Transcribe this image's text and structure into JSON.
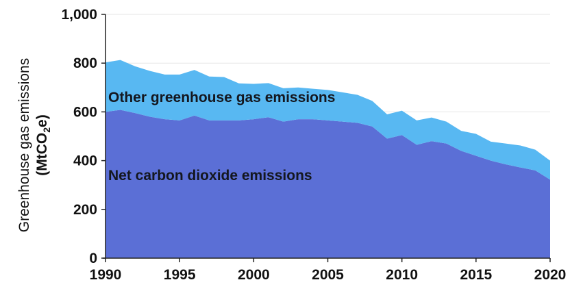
{
  "chart_data": {
    "type": "area",
    "stacked": true,
    "ylabel": "Greenhouse gas emissions",
    "ylabel_unit_parts": [
      "(MtCO",
      "2",
      "e)"
    ],
    "xlim": [
      1990,
      2020
    ],
    "ylim": [
      0,
      1000
    ],
    "y_ticks": [
      0,
      200,
      400,
      600,
      800,
      1000
    ],
    "y_tick_labels": [
      "0",
      "200",
      "400",
      "600",
      "800",
      "1,000"
    ],
    "x_ticks": [
      1990,
      1995,
      2000,
      2005,
      2010,
      2015,
      2020
    ],
    "x_tick_labels": [
      "1990",
      "1995",
      "2000",
      "2005",
      "2010",
      "2015",
      "2020"
    ],
    "grid": true,
    "x": [
      1990,
      1991,
      1992,
      1993,
      1994,
      1995,
      1996,
      1997,
      1998,
      1999,
      2000,
      2001,
      2002,
      2003,
      2004,
      2005,
      2006,
      2007,
      2008,
      2009,
      2010,
      2011,
      2012,
      2013,
      2014,
      2015,
      2016,
      2017,
      2018,
      2019,
      2020
    ],
    "series": [
      {
        "name": "Net carbon dioxide emissions",
        "color": "#5b6fd6",
        "values": [
          600,
          608,
          595,
          580,
          570,
          565,
          585,
          565,
          565,
          565,
          570,
          578,
          560,
          570,
          570,
          565,
          560,
          555,
          540,
          490,
          505,
          465,
          480,
          470,
          440,
          420,
          400,
          385,
          372,
          360,
          322
        ]
      },
      {
        "name": "Other greenhouse gas emissions",
        "color": "#58b8f2",
        "values": [
          203,
          205,
          192,
          188,
          183,
          188,
          187,
          180,
          178,
          152,
          145,
          140,
          137,
          130,
          125,
          125,
          120,
          115,
          105,
          100,
          100,
          100,
          97,
          90,
          82,
          90,
          78,
          85,
          90,
          85,
          78
        ]
      }
    ],
    "totals": [
      803,
      813,
      787,
      768,
      753,
      753,
      772,
      745,
      743,
      717,
      715,
      718,
      697,
      700,
      695,
      690,
      680,
      670,
      645,
      590,
      605,
      565,
      577,
      560,
      522,
      510,
      478,
      470,
      462,
      445,
      400
    ],
    "annotations": [
      {
        "text": "Other greenhouse gas emissions"
      },
      {
        "text": "Net carbon dioxide emissions"
      }
    ]
  }
}
